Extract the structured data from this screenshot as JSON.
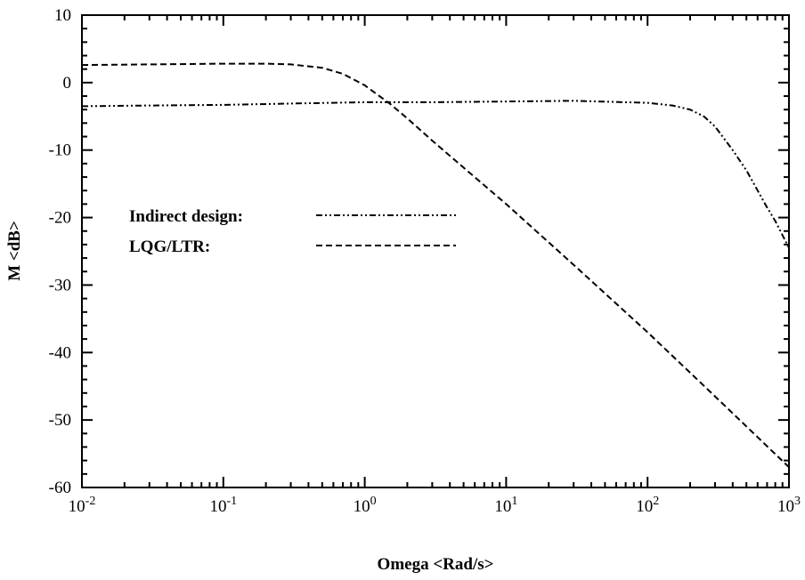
{
  "chart_data": {
    "type": "line",
    "title": "",
    "xlabel": "Omega <Rad/s>",
    "ylabel": "M <dB>",
    "xscale": "log",
    "xlim": [
      0.01,
      1000
    ],
    "ylim": [
      -60,
      10
    ],
    "grid": false,
    "legend_placement": "center-left",
    "x_ticks": [
      {
        "base": "10",
        "exp": "-2"
      },
      {
        "base": "10",
        "exp": "-1"
      },
      {
        "base": "10",
        "exp": "0"
      },
      {
        "base": "10",
        "exp": "1"
      },
      {
        "base": "10",
        "exp": "2"
      },
      {
        "base": "10",
        "exp": "3"
      }
    ],
    "y_ticks": [
      "10",
      "0",
      "-10",
      "-20",
      "-30",
      "-40",
      "-50",
      "-60"
    ],
    "series": [
      {
        "name": "Indirect design:",
        "style": "dash-dot-dot",
        "color": "#000000",
        "x": [
          0.01,
          0.03,
          0.1,
          0.3,
          1,
          3,
          10,
          30,
          100,
          150,
          200,
          250,
          300,
          400,
          500,
          600,
          700,
          800,
          1000
        ],
        "y": [
          -3.5,
          -3.4,
          -3.3,
          -3.1,
          -2.9,
          -2.9,
          -2.8,
          -2.7,
          -3.0,
          -3.4,
          -4.0,
          -5.0,
          -6.5,
          -10.0,
          -13.0,
          -16.0,
          -18.5,
          -20.5,
          -24.5
        ]
      },
      {
        "name": "LQG/LTR:",
        "style": "dashed",
        "color": "#000000",
        "x": [
          0.01,
          0.03,
          0.1,
          0.2,
          0.3,
          0.5,
          0.7,
          1,
          1.5,
          2,
          3,
          5,
          10,
          30,
          100,
          300,
          1000
        ],
        "y": [
          2.6,
          2.7,
          2.8,
          2.8,
          2.7,
          2.2,
          1.3,
          -0.4,
          -3.1,
          -5.3,
          -8.6,
          -12.6,
          -18.0,
          -27.0,
          -37.0,
          -46.5,
          -57.0
        ]
      }
    ]
  }
}
